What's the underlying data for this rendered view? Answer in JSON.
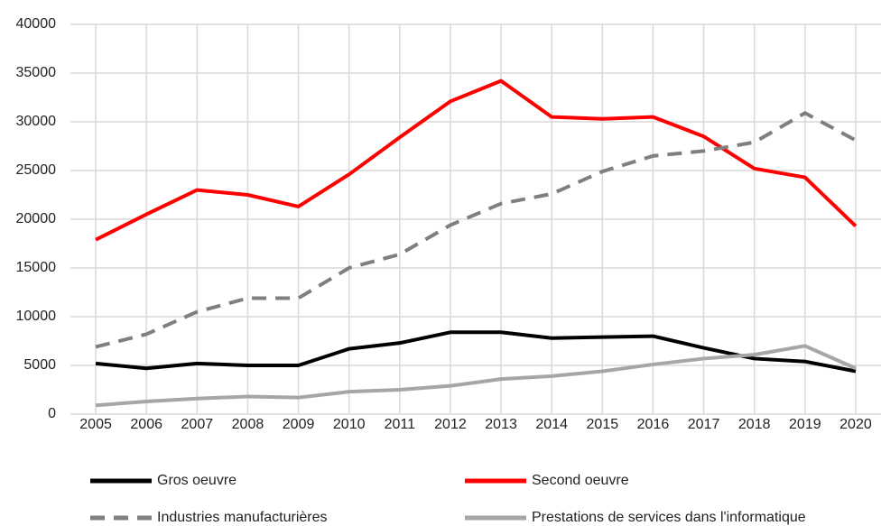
{
  "chart_data": {
    "type": "line",
    "categories": [
      "2005",
      "2006",
      "2007",
      "2008",
      "2009",
      "2010",
      "2011",
      "2012",
      "2013",
      "2014",
      "2015",
      "2016",
      "2017",
      "2018",
      "2019",
      "2020"
    ],
    "series": [
      {
        "name": "Gros oeuvre",
        "color": "#000000",
        "dash": false,
        "values": [
          5200,
          4700,
          5200,
          5000,
          5000,
          6700,
          7300,
          8400,
          8400,
          7800,
          7900,
          8000,
          6800,
          5700,
          5400,
          4400
        ]
      },
      {
        "name": "Second oeuvre",
        "color": "#ff0000",
        "dash": false,
        "values": [
          17900,
          20500,
          23000,
          22500,
          21300,
          24600,
          28400,
          32100,
          34200,
          30500,
          30300,
          30500,
          28500,
          25200,
          24300,
          19300
        ]
      },
      {
        "name": "Industries manufacturières",
        "color": "#7f7f7f",
        "dash": true,
        "values": [
          6900,
          8200,
          10500,
          11900,
          11900,
          15000,
          16400,
          19400,
          21600,
          22600,
          24900,
          26500,
          27000,
          27900,
          30900,
          28100
        ]
      },
      {
        "name": "Prestations de services dans l'informatique",
        "color": "#a6a6a6",
        "dash": false,
        "values": [
          900,
          1300,
          1600,
          1800,
          1700,
          2300,
          2500,
          2900,
          3600,
          3900,
          4400,
          5100,
          5700,
          6100,
          7000,
          4700
        ]
      }
    ],
    "ylim": [
      0,
      40000
    ],
    "yticks": [
      0,
      5000,
      10000,
      15000,
      20000,
      25000,
      30000,
      35000,
      40000
    ],
    "grid": true
  }
}
